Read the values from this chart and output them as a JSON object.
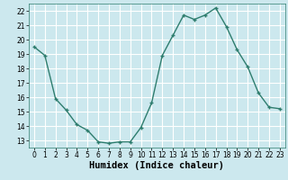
{
  "x": [
    0,
    1,
    2,
    3,
    4,
    5,
    6,
    7,
    8,
    9,
    10,
    11,
    12,
    13,
    14,
    15,
    16,
    17,
    18,
    19,
    20,
    21,
    22,
    23
  ],
  "y": [
    19.5,
    18.9,
    15.9,
    15.1,
    14.1,
    13.7,
    12.9,
    12.8,
    12.9,
    12.9,
    13.9,
    15.6,
    18.9,
    20.3,
    21.7,
    21.4,
    21.7,
    22.2,
    20.9,
    19.3,
    18.1,
    16.3,
    15.3,
    15.2
  ],
  "line_color": "#2e7d6e",
  "marker": "+",
  "marker_size": 3,
  "marker_lw": 1.0,
  "xlabel": "Humidex (Indice chaleur)",
  "xlim": [
    -0.5,
    23.5
  ],
  "ylim": [
    12.5,
    22.5
  ],
  "yticks": [
    13,
    14,
    15,
    16,
    17,
    18,
    19,
    20,
    21,
    22
  ],
  "xticks": [
    0,
    1,
    2,
    3,
    4,
    5,
    6,
    7,
    8,
    9,
    10,
    11,
    12,
    13,
    14,
    15,
    16,
    17,
    18,
    19,
    20,
    21,
    22,
    23
  ],
  "bg_color": "#cce8ee",
  "grid_color": "#ffffff",
  "tick_label_fontsize": 5.5,
  "xlabel_fontsize": 7.5,
  "line_width": 1.0
}
